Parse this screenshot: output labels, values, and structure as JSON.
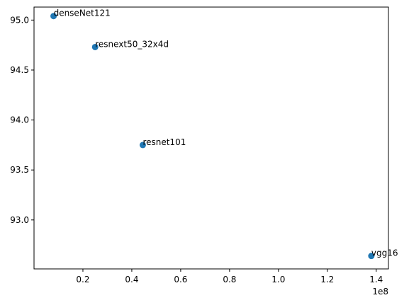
{
  "chart_data": {
    "type": "scatter",
    "title": "",
    "xlabel": "",
    "ylabel": "",
    "x_offset_text": "1e8",
    "x_scale": 100000000,
    "xlim": [
      0.0,
      1.45
    ],
    "ylim": [
      92.51,
      95.13
    ],
    "x_ticks": [
      0.2,
      0.4,
      0.6,
      0.8,
      1.0,
      1.2,
      1.4
    ],
    "x_tick_labels": [
      "0.2",
      "0.4",
      "0.6",
      "0.8",
      "1.0",
      "1.2",
      "1.4"
    ],
    "y_ticks": [
      93.0,
      93.5,
      94.0,
      94.5,
      95.0
    ],
    "y_tick_labels": [
      "93.0",
      "93.5",
      "94.0",
      "94.5",
      "95.0"
    ],
    "grid": false,
    "marker_color": "#1f77b4",
    "points": [
      {
        "label": "denseNet121",
        "x": 0.08,
        "y": 95.04
      },
      {
        "label": "resnext50_32x4d",
        "x": 0.25,
        "y": 94.73
      },
      {
        "label": "resnet101",
        "x": 0.445,
        "y": 93.75
      },
      {
        "label": "vgg16",
        "x": 1.38,
        "y": 92.64
      }
    ]
  }
}
